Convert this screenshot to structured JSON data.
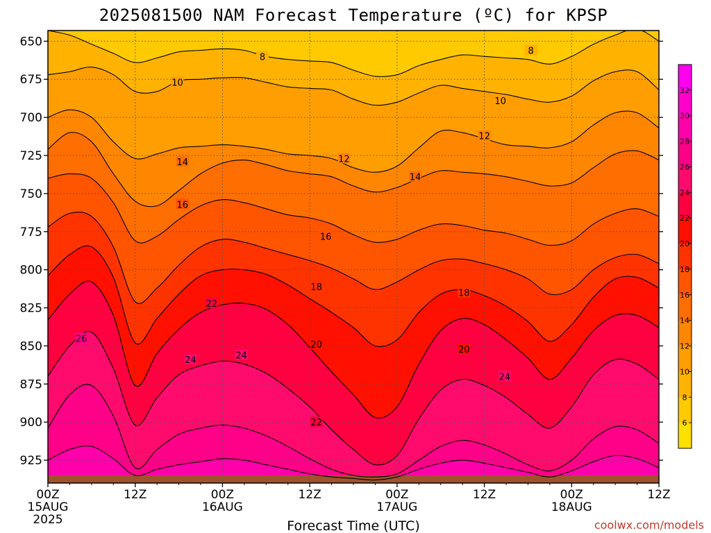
{
  "chart_data": {
    "type": "heatmap",
    "title": "2025081500 NAM Forecast Temperature (ºC) for KPSP",
    "xlabel": "Forecast Time (UTC)",
    "ylabel": "",
    "credit": "coolwx.com/models",
    "x_ticks": [
      {
        "hour": 0,
        "label": "00Z",
        "date": "15AUG",
        "year": "2025"
      },
      {
        "hour": 12,
        "label": "12Z"
      },
      {
        "hour": 24,
        "label": "00Z",
        "date": "16AUG"
      },
      {
        "hour": 36,
        "label": "12Z"
      },
      {
        "hour": 48,
        "label": "00Z",
        "date": "17AUG"
      },
      {
        "hour": 60,
        "label": "12Z"
      },
      {
        "hour": 72,
        "label": "00Z",
        "date": "18AUG"
      },
      {
        "hour": 84,
        "label": "12Z"
      }
    ],
    "xlim": [
      0,
      84
    ],
    "y_ticks": [
      650,
      675,
      700,
      725,
      750,
      775,
      800,
      825,
      850,
      875,
      900,
      925
    ],
    "ylim": [
      643,
      940
    ],
    "y_inverted": true,
    "grid": true,
    "colorbar": {
      "placement": "right",
      "levels": [
        4,
        6,
        8,
        10,
        12,
        14,
        16,
        18,
        20,
        22,
        24,
        26,
        28,
        30,
        32,
        34
      ],
      "tick_labels": [
        6,
        8,
        10,
        12,
        14,
        16,
        18,
        20,
        22,
        24,
        26,
        28,
        30,
        32
      ],
      "colors": [
        "#ffe000",
        "#ffca00",
        "#ffb300",
        "#ff9e00",
        "#ff8600",
        "#ff6e00",
        "#ff5400",
        "#ff3300",
        "#ff1000",
        "#ff0040",
        "#ff0b6e",
        "#ff0088",
        "#ff00aa",
        "#ff00cc",
        "#ff00ee"
      ]
    },
    "surface_pressure": 935,
    "surface_color": "#a0522d",
    "hours": [
      0,
      3,
      6,
      9,
      12,
      15,
      18,
      21,
      24,
      27,
      30,
      33,
      36,
      39,
      42,
      45,
      48,
      51,
      54,
      57,
      60,
      63,
      66,
      69,
      72,
      75,
      78,
      81,
      84
    ],
    "isotherms": [
      {
        "temp": 8,
        "pressure": [
          643,
          646,
          652,
          658,
          664,
          661,
          657,
          656,
          655,
          656,
          660,
          662,
          663,
          664,
          669,
          673,
          672,
          666,
          662,
          659,
          660,
          661,
          662,
          665,
          660,
          652,
          646,
          642,
          650
        ]
      },
      {
        "temp": 10,
        "pressure": [
          672,
          670,
          667,
          672,
          683,
          683,
          676,
          675,
          674,
          674,
          677,
          680,
          681,
          682,
          688,
          692,
          690,
          684,
          679,
          681,
          683,
          685,
          688,
          690,
          686,
          676,
          670,
          670,
          682
        ]
      },
      {
        "temp": 12,
        "pressure": [
          700,
          695,
          700,
          716,
          727,
          724,
          720,
          719,
          718,
          719,
          721,
          724,
          725,
          727,
          733,
          736,
          732,
          720,
          709,
          710,
          714,
          718,
          719,
          720,
          716,
          705,
          697,
          697,
          707
        ]
      },
      {
        "temp": 14,
        "pressure": [
          721,
          710,
          716,
          737,
          755,
          758,
          748,
          737,
          730,
          728,
          731,
          735,
          737,
          739,
          745,
          749,
          746,
          740,
          735,
          736,
          737,
          739,
          742,
          745,
          743,
          733,
          724,
          722,
          728
        ]
      },
      {
        "temp": 16,
        "pressure": [
          740,
          737,
          740,
          756,
          781,
          778,
          767,
          758,
          754,
          756,
          760,
          764,
          766,
          770,
          777,
          782,
          780,
          774,
          770,
          771,
          774,
          776,
          780,
          784,
          781,
          770,
          763,
          760,
          765
        ]
      },
      {
        "temp": 18,
        "pressure": [
          772,
          763,
          765,
          785,
          821,
          812,
          797,
          785,
          780,
          782,
          786,
          790,
          794,
          799,
          806,
          813,
          808,
          800,
          794,
          793,
          796,
          800,
          806,
          816,
          813,
          800,
          792,
          790,
          796
        ]
      },
      {
        "temp": 20,
        "pressure": [
          804,
          790,
          785,
          805,
          848,
          832,
          816,
          804,
          800,
          800,
          803,
          810,
          819,
          828,
          838,
          850,
          846,
          828,
          816,
          813,
          817,
          824,
          834,
          847,
          836,
          818,
          806,
          805,
          812
        ]
      },
      {
        "temp": 22,
        "pressure": [
          833,
          816,
          808,
          830,
          876,
          855,
          839,
          828,
          823,
          822,
          826,
          836,
          851,
          867,
          882,
          897,
          890,
          862,
          840,
          832,
          836,
          846,
          858,
          872,
          858,
          840,
          830,
          830,
          838
        ]
      },
      {
        "temp": 24,
        "pressure": [
          870,
          850,
          841,
          865,
          902,
          884,
          869,
          863,
          860,
          862,
          868,
          878,
          890,
          905,
          918,
          928,
          922,
          898,
          879,
          872,
          876,
          884,
          895,
          904,
          890,
          869,
          859,
          862,
          872
        ]
      },
      {
        "temp": 26,
        "pressure": [
          904,
          882,
          876,
          896,
          930,
          918,
          908,
          904,
          902,
          904,
          909,
          916,
          924,
          931,
          935,
          936,
          934,
          925,
          916,
          912,
          915,
          921,
          928,
          932,
          925,
          911,
          903,
          905,
          914
        ]
      },
      {
        "temp": 28,
        "pressure": [
          925,
          918,
          916,
          924,
          935,
          931,
          928,
          926,
          924,
          925,
          928,
          931,
          934,
          936,
          937,
          938,
          936,
          931,
          927,
          925,
          927,
          930,
          933,
          936,
          932,
          926,
          922,
          924,
          930
        ]
      }
    ],
    "contour_labels": [
      {
        "temp": 8,
        "hour": 29.5,
        "pressure": 660
      },
      {
        "temp": 8,
        "hour": 66.4,
        "pressure": 656
      },
      {
        "temp": 10,
        "hour": 17.8,
        "pressure": 677
      },
      {
        "temp": 10,
        "hour": 62.2,
        "pressure": 689
      },
      {
        "temp": 12,
        "hour": 40.7,
        "pressure": 727
      },
      {
        "temp": 12,
        "hour": 60.0,
        "pressure": 712
      },
      {
        "temp": 14,
        "hour": 18.5,
        "pressure": 729
      },
      {
        "temp": 14,
        "hour": 50.5,
        "pressure": 739
      },
      {
        "temp": 16,
        "hour": 18.5,
        "pressure": 757
      },
      {
        "temp": 16,
        "hour": 38.2,
        "pressure": 778
      },
      {
        "temp": 18,
        "hour": 36.9,
        "pressure": 811
      },
      {
        "temp": 18,
        "hour": 57.2,
        "pressure": 815
      },
      {
        "temp": 20,
        "hour": 36.9,
        "pressure": 849
      },
      {
        "temp": 20,
        "hour": 57.2,
        "pressure": 852
      },
      {
        "temp": 22,
        "hour": 22.5,
        "pressure": 822
      },
      {
        "temp": 22,
        "hour": 36.9,
        "pressure": 900
      },
      {
        "temp": 24,
        "hour": 19.6,
        "pressure": 859
      },
      {
        "temp": 24,
        "hour": 26.6,
        "pressure": 856
      },
      {
        "temp": 24,
        "hour": 62.8,
        "pressure": 870
      },
      {
        "temp": 26,
        "hour": 4.6,
        "pressure": 845
      }
    ]
  }
}
